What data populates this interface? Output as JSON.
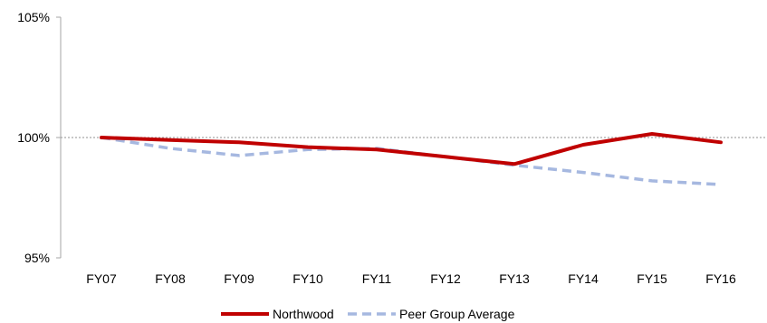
{
  "chart_data": {
    "type": "line",
    "title": "",
    "xlabel": "",
    "ylabel": "",
    "categories": [
      "FY07",
      "FY08",
      "FY09",
      "FY10",
      "FY11",
      "FY12",
      "FY13",
      "FY14",
      "FY15",
      "FY16"
    ],
    "ylim": [
      95,
      105
    ],
    "yticks": [
      95,
      100,
      105
    ],
    "ytick_labels": [
      "95%",
      "100%",
      "105%"
    ],
    "reference_line": 100,
    "grid": false,
    "legend_position": "bottom",
    "series": [
      {
        "name": "Northwood",
        "values": [
          100.0,
          99.9,
          99.8,
          99.6,
          99.5,
          99.2,
          98.9,
          99.7,
          100.15,
          99.8
        ],
        "color": "#C00000",
        "style": "solid"
      },
      {
        "name": "Peer Group Average",
        "values": [
          100.0,
          99.55,
          99.25,
          99.5,
          99.55,
          99.2,
          98.85,
          98.55,
          98.2,
          98.05
        ],
        "color": "#A6B8E0",
        "style": "dashed"
      }
    ]
  }
}
